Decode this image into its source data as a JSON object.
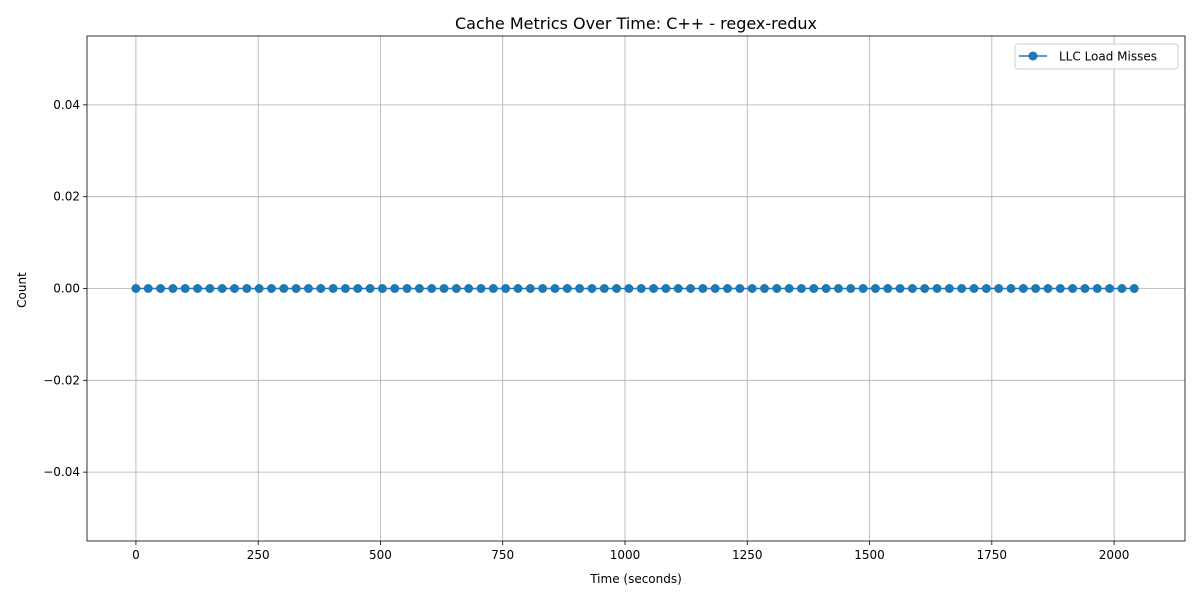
{
  "chart_data": {
    "type": "line",
    "title": "Cache Metrics Over Time: C++ - regex-redux",
    "xlabel": "Time (seconds)",
    "ylabel": "Count",
    "xlim": [
      -100,
      2145
    ],
    "ylim": [
      -0.055,
      0.055
    ],
    "xticks": [
      0,
      250,
      500,
      750,
      1000,
      1250,
      1500,
      1750,
      2000
    ],
    "xtick_labels": [
      "0",
      "250",
      "500",
      "750",
      "1000",
      "1250",
      "1500",
      "1750",
      "2000"
    ],
    "yticks": [
      -0.04,
      -0.02,
      0.0,
      0.02,
      0.04
    ],
    "ytick_labels": [
      "−0.04",
      "−0.02",
      "0.00",
      "0.02",
      "0.04"
    ],
    "grid": true,
    "legend_position": "top-right",
    "series": [
      {
        "name": "LLC Load Misses",
        "color": "#1f77b4",
        "marker": "circle",
        "x": [
          0,
          25.2,
          50.4,
          75.6,
          100.8,
          126,
          151.2,
          176.4,
          201.6,
          226.8,
          252,
          277.2,
          302.4,
          327.6,
          352.8,
          378,
          403.2,
          428.4,
          453.6,
          478.8,
          504,
          529.2,
          554.4,
          579.6,
          604.8,
          630,
          655.2,
          680.4,
          705.6,
          730.8,
          756,
          781.2,
          806.4,
          831.6,
          856.8,
          882,
          907.2,
          932.4,
          957.6,
          982.8,
          1008,
          1033.2,
          1058.4,
          1083.6,
          1108.8,
          1134,
          1159.2,
          1184.4,
          1209.6,
          1234.8,
          1260,
          1285.2,
          1310.4,
          1335.6,
          1360.8,
          1386,
          1411.2,
          1436.4,
          1461.6,
          1486.8,
          1512,
          1537.2,
          1562.4,
          1587.6,
          1612.8,
          1638,
          1663.2,
          1688.4,
          1713.6,
          1738.8,
          1764,
          1789.2,
          1814.4,
          1839.6,
          1864.8,
          1890,
          1915.2,
          1940.4,
          1965.6,
          1990.8,
          2016,
          2041.2
        ],
        "y": [
          0,
          0,
          0,
          0,
          0,
          0,
          0,
          0,
          0,
          0,
          0,
          0,
          0,
          0,
          0,
          0,
          0,
          0,
          0,
          0,
          0,
          0,
          0,
          0,
          0,
          0,
          0,
          0,
          0,
          0,
          0,
          0,
          0,
          0,
          0,
          0,
          0,
          0,
          0,
          0,
          0,
          0,
          0,
          0,
          0,
          0,
          0,
          0,
          0,
          0,
          0,
          0,
          0,
          0,
          0,
          0,
          0,
          0,
          0,
          0,
          0,
          0,
          0,
          0,
          0,
          0,
          0,
          0,
          0,
          0,
          0,
          0,
          0,
          0,
          0,
          0,
          0,
          0,
          0,
          0,
          0,
          0
        ]
      }
    ]
  }
}
